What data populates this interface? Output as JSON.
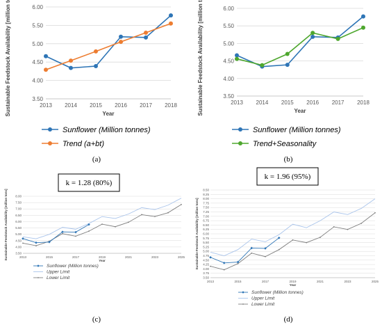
{
  "chart_data": [
    {
      "panel_label": "(a)",
      "type": "line",
      "ylabel": "Sustainable Feedstock Availability [million tons]",
      "xlabel": "Year",
      "x": [
        2013,
        2014,
        2015,
        2016,
        2017,
        2018
      ],
      "ylim": [
        3.5,
        6.0
      ],
      "yticks": [
        "3.50",
        "4.00",
        "4.50",
        "5.00",
        "5.50",
        "6.00"
      ],
      "grid": true,
      "legend_position": "bottom",
      "series": [
        {
          "name": "Sunflower (Million tonnes)",
          "color": "#2e75b6",
          "marker": "circle",
          "values": [
            4.66,
            4.34,
            4.39,
            5.19,
            5.17,
            5.77
          ]
        },
        {
          "name": "Trend (a+bt)",
          "color": "#ed7d31",
          "marker": "circle",
          "values": [
            4.29,
            4.54,
            4.79,
            5.05,
            5.3,
            5.55
          ]
        }
      ]
    },
    {
      "panel_label": "(b)",
      "type": "line",
      "ylabel": "Sustainable Feedstock Availability [million tons]",
      "xlabel": "Year",
      "x": [
        2013,
        2014,
        2015,
        2016,
        2017,
        2018
      ],
      "ylim": [
        3.5,
        6.0
      ],
      "yticks": [
        "3.50",
        "4.00",
        "4.50",
        "5.00",
        "5.50",
        "6.00"
      ],
      "grid": true,
      "legend_position": "bottom",
      "series": [
        {
          "name": "Sunflower (Million tonnes)",
          "color": "#2e75b6",
          "marker": "circle",
          "values": [
            4.66,
            4.34,
            4.39,
            5.19,
            5.17,
            5.77
          ]
        },
        {
          "name": "Trend+Seasonality",
          "color": "#4ea72e",
          "marker": "circle",
          "values": [
            4.56,
            4.38,
            4.7,
            5.3,
            5.13,
            5.45
          ]
        }
      ]
    },
    {
      "panel_label": "(c)",
      "annotation": "k = 1.28 (80%)",
      "type": "line",
      "ylabel": "Sustainable Feedstock Availability [million tons]",
      "xlabel": "Year",
      "x": [
        2013,
        2014,
        2015,
        2016,
        2017,
        2018,
        2019,
        2020,
        2021,
        2022,
        2023,
        2024,
        2025
      ],
      "xticks": [
        "2013",
        "2015",
        "2017",
        "2019",
        "2021",
        "2023",
        "2025"
      ],
      "ylim": [
        3.5,
        8.0
      ],
      "yticks": [
        "3.50",
        "4.00",
        "4.50",
        "5.00",
        "5.50",
        "6.00",
        "6.50",
        "7.00",
        "7.50",
        "8.00"
      ],
      "grid": true,
      "legend_position": "bottom",
      "series": [
        {
          "name": "Sunflower (Million tonnes)",
          "color": "#2e75b6",
          "marker": "diamond",
          "values": [
            4.66,
            4.34,
            4.39,
            5.19,
            5.17,
            5.77,
            null,
            null,
            null,
            null,
            null,
            null,
            null
          ]
        },
        {
          "name": "Upper Limit",
          "color": "#a9c4eb",
          "marker": "none",
          "values": [
            4.8,
            4.65,
            5.0,
            5.55,
            5.4,
            5.85,
            6.4,
            6.25,
            6.6,
            7.1,
            6.95,
            7.3,
            7.85
          ]
        },
        {
          "name": "Lower Limit",
          "color": "#7f7f7f",
          "marker": "dot",
          "values": [
            4.3,
            4.1,
            4.45,
            5.05,
            4.85,
            5.25,
            5.8,
            5.6,
            5.95,
            6.55,
            6.4,
            6.7,
            7.35
          ]
        }
      ]
    },
    {
      "panel_label": "(d)",
      "annotation": "k = 1.96 (95%)",
      "type": "line",
      "ylabel": "Sustainable Feedstock Availability [million tons]",
      "xlabel": "Year",
      "x": [
        2013,
        2014,
        2015,
        2016,
        2017,
        2018,
        2019,
        2020,
        2021,
        2022,
        2023,
        2024,
        2025
      ],
      "xticks": [
        "2013",
        "2015",
        "2017",
        "2019",
        "2021",
        "2023",
        "2025"
      ],
      "ylim": [
        3.5,
        8.5
      ],
      "yticks": [
        "3.50",
        "3.75",
        "4.00",
        "4.25",
        "4.50",
        "4.75",
        "5.00",
        "5.25",
        "5.50",
        "5.75",
        "6.00",
        "6.25",
        "6.50",
        "6.75",
        "7.00",
        "7.25",
        "7.50",
        "7.75",
        "8.00",
        "8.25",
        "8.50"
      ],
      "grid": true,
      "legend_position": "bottom",
      "series": [
        {
          "name": "Sunflower (Million tonnes)",
          "color": "#2e75b6",
          "marker": "diamond",
          "values": [
            4.66,
            4.34,
            4.39,
            5.19,
            5.17,
            5.77,
            null,
            null,
            null,
            null,
            null,
            null,
            null
          ]
        },
        {
          "name": "Upper Limit",
          "color": "#a9c4eb",
          "marker": "none",
          "values": [
            4.95,
            4.75,
            5.1,
            5.7,
            5.55,
            5.95,
            6.55,
            6.35,
            6.75,
            7.25,
            7.1,
            7.45,
            8.0
          ]
        },
        {
          "name": "Lower Limit",
          "color": "#7f7f7f",
          "marker": "dot",
          "values": [
            4.15,
            3.95,
            4.3,
            4.9,
            4.7,
            5.1,
            5.65,
            5.5,
            5.8,
            6.4,
            6.25,
            6.6,
            7.2
          ]
        }
      ]
    }
  ]
}
